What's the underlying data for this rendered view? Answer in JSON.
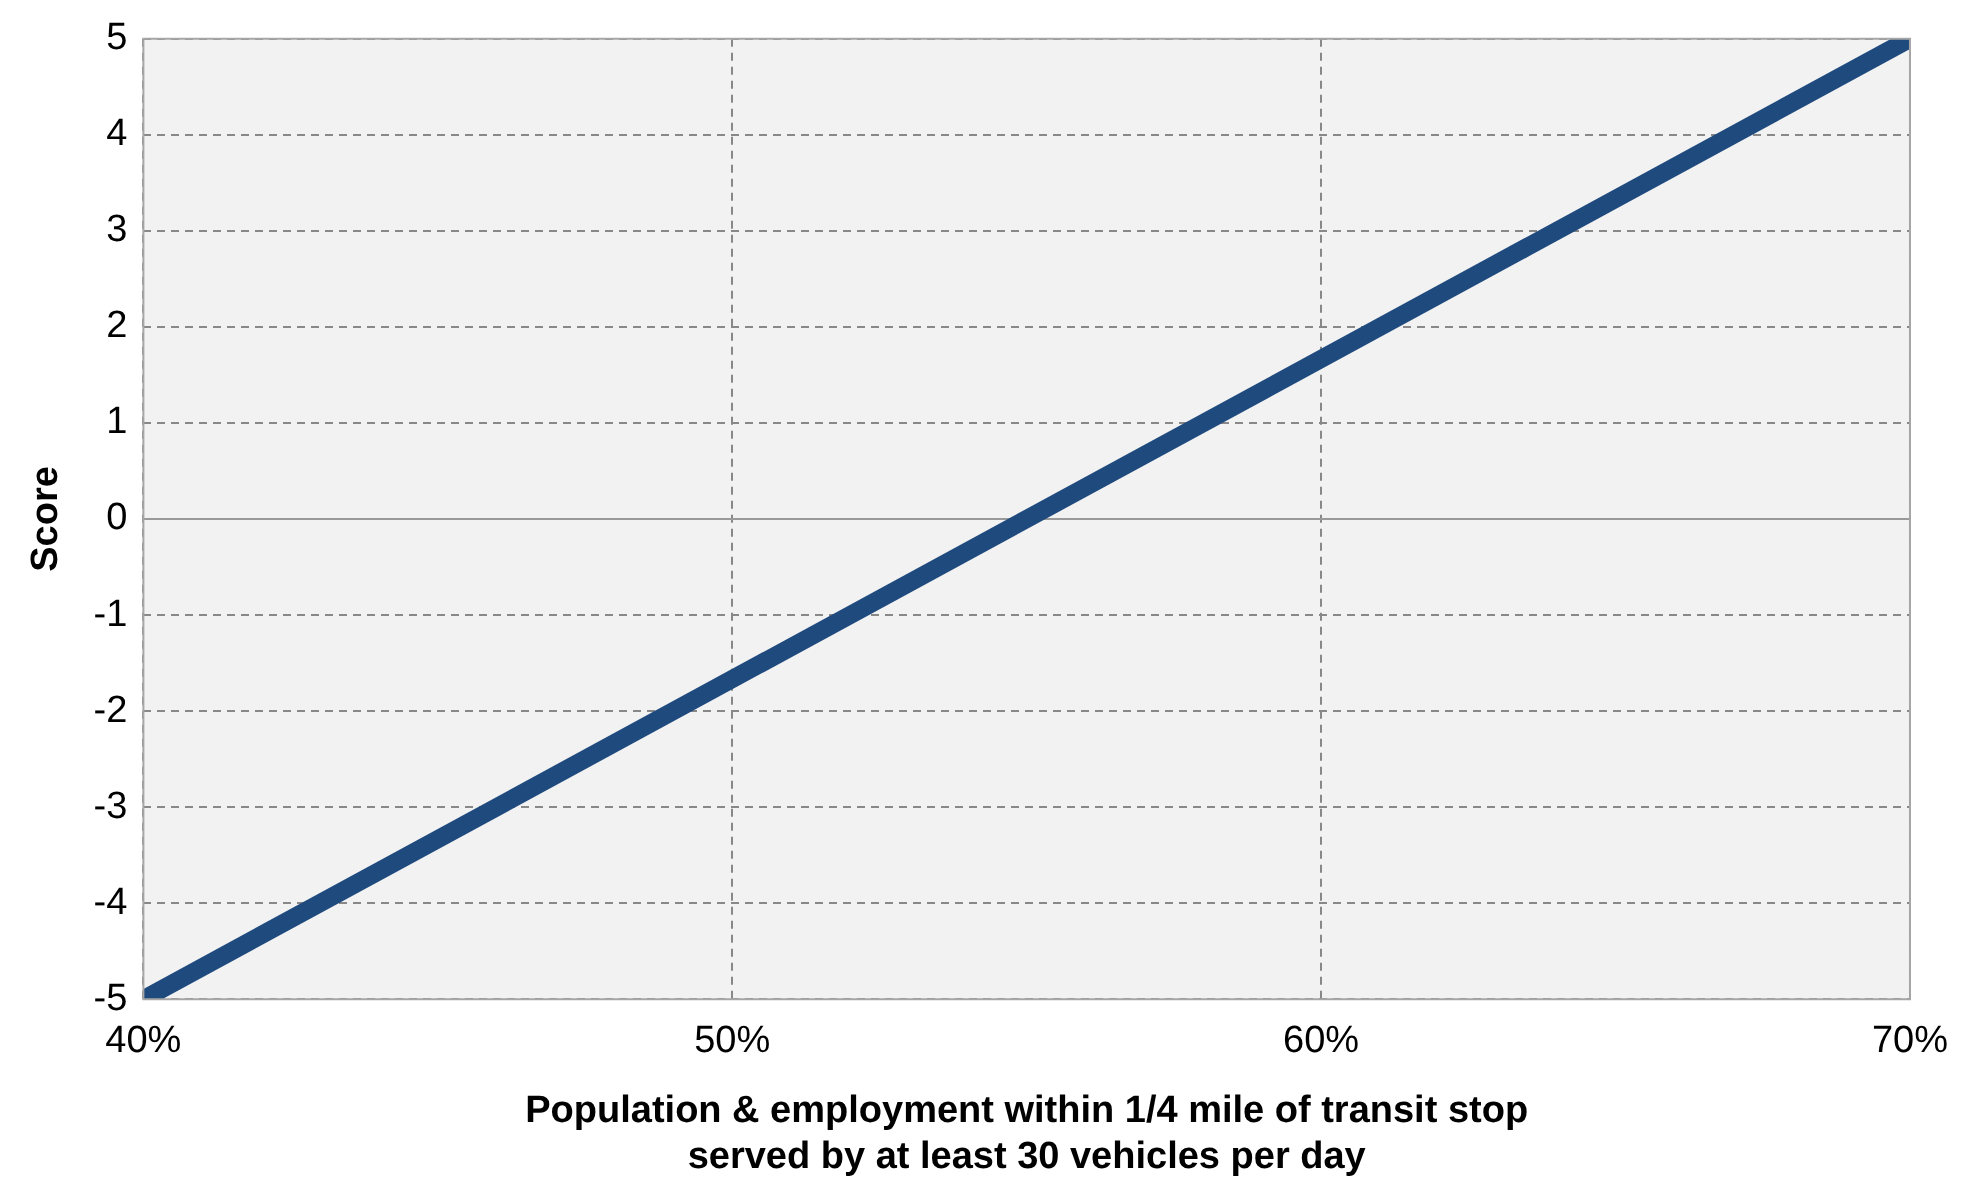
{
  "chart_data": {
    "type": "line",
    "xlabel": "Population & employment within 1/4 mile of transit stop\nserved by at least 30 vehicles per day",
    "ylabel": "Score",
    "x": [
      40,
      70
    ],
    "series": [
      {
        "color": "#1f4a7e",
        "values": [
          -5,
          5
        ]
      }
    ],
    "xlim": [
      40,
      70
    ],
    "xticks": [
      {
        "value": 40,
        "label": "40%"
      },
      {
        "value": 50,
        "label": "50%"
      },
      {
        "value": 60,
        "label": "60%"
      },
      {
        "value": 70,
        "label": "70%"
      }
    ],
    "ylim": [
      -5,
      5
    ],
    "yticks": [
      -5,
      -4,
      -3,
      -2,
      -1,
      0,
      1,
      2,
      3,
      4,
      5
    ],
    "grid": true,
    "legend": false,
    "marker": "none",
    "line_style": "solid"
  }
}
